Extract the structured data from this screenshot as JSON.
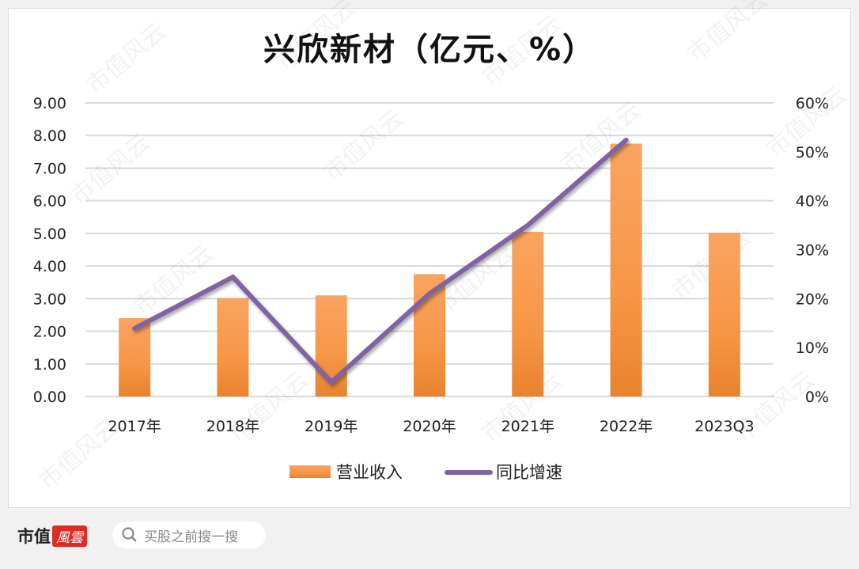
{
  "chart_data": {
    "type": "bar+line",
    "title": "兴欣新材（亿元、%）",
    "categories": [
      "2017年",
      "2018年",
      "2019年",
      "2020年",
      "2021年",
      "2022年",
      "2023Q3"
    ],
    "series": [
      {
        "name": "营业收入",
        "type": "bar",
        "axis": "left",
        "color": "#f79646",
        "values": [
          2.4,
          3.02,
          3.1,
          3.75,
          5.05,
          7.75,
          5.02
        ]
      },
      {
        "name": "同比增速",
        "type": "line",
        "axis": "right",
        "color": "#8064a2",
        "values": [
          13.9,
          24.4,
          2.9,
          21.0,
          35.0,
          52.4,
          null
        ]
      }
    ],
    "left_axis": {
      "ylim": [
        0,
        9
      ],
      "ticks": [
        "0.00",
        "1.00",
        "2.00",
        "3.00",
        "4.00",
        "5.00",
        "6.00",
        "7.00",
        "8.00",
        "9.00"
      ]
    },
    "right_axis": {
      "ylim": [
        0,
        60
      ],
      "ticks": [
        "0%",
        "10%",
        "20%",
        "30%",
        "40%",
        "50%",
        "60%"
      ]
    },
    "grid": true,
    "legend": "bottom"
  },
  "watermark": "市值风云",
  "footer": {
    "logo_text": "市值",
    "logo_badge": "風雲",
    "search_placeholder": "买股之前搜一搜"
  }
}
